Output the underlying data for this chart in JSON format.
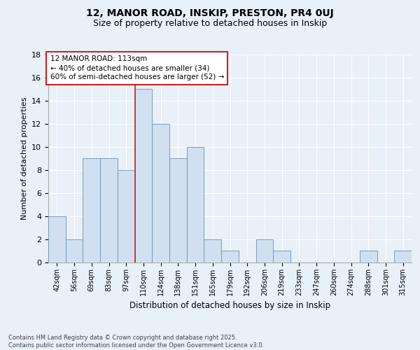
{
  "title1": "12, MANOR ROAD, INSKIP, PRESTON, PR4 0UJ",
  "title2": "Size of property relative to detached houses in Inskip",
  "xlabel": "Distribution of detached houses by size in Inskip",
  "ylabel": "Number of detached properties",
  "bin_labels": [
    "42sqm",
    "56sqm",
    "69sqm",
    "83sqm",
    "97sqm",
    "110sqm",
    "124sqm",
    "138sqm",
    "151sqm",
    "165sqm",
    "179sqm",
    "192sqm",
    "206sqm",
    "219sqm",
    "233sqm",
    "247sqm",
    "260sqm",
    "274sqm",
    "288sqm",
    "301sqm",
    "315sqm"
  ],
  "bar_heights": [
    4,
    2,
    9,
    9,
    8,
    15,
    12,
    9,
    10,
    2,
    1,
    0,
    2,
    1,
    0,
    0,
    0,
    0,
    1,
    0,
    1
  ],
  "bar_color": "#d0e0f0",
  "bar_edgecolor": "#7090b0",
  "red_line_bin_index": 5,
  "property_label": "12 MANOR ROAD: 113sqm",
  "annotation_line1": "← 40% of detached houses are smaller (34)",
  "annotation_line2": "60% of semi-detached houses are larger (52) →",
  "annotation_box_facecolor": "#ffffff",
  "annotation_box_edgecolor": "#cc2222",
  "ylim": [
    0,
    18
  ],
  "yticks": [
    0,
    2,
    4,
    6,
    8,
    10,
    12,
    14,
    16,
    18
  ],
  "bg_color": "#e8f0f8",
  "footer_line1": "Contains HM Land Registry data © Crown copyright and database right 2025.",
  "footer_line2": "Contains public sector information licensed under the Open Government Licence v3.0."
}
